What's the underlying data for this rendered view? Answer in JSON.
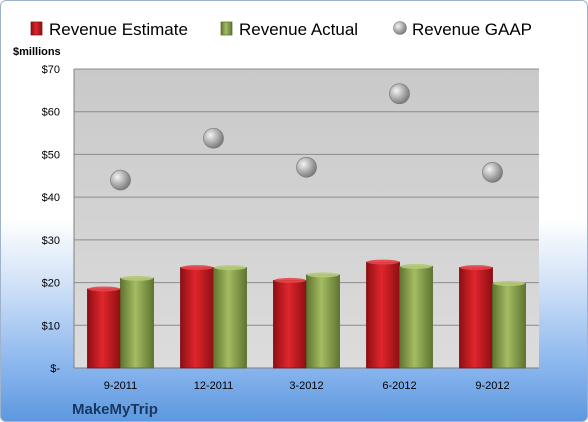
{
  "chart_data": {
    "type": "bar",
    "categories": [
      "9-2011",
      "12-2011",
      "3-2012",
      "6-2012",
      "9-2012"
    ],
    "series": [
      {
        "name": "Revenue Estimate",
        "mark": "bar",
        "color": "#c0151b",
        "values": [
          18.5,
          23.5,
          20.5,
          24.8,
          23.5
        ]
      },
      {
        "name": "Revenue Actual",
        "mark": "bar",
        "color": "#8aa04a",
        "values": [
          21,
          23.5,
          21.8,
          23.8,
          19.8
        ]
      },
      {
        "name": "Revenue GAAP",
        "mark": "scatter",
        "color": "#a6a6a6",
        "values": [
          44,
          53.8,
          47,
          64.2,
          45.8
        ]
      }
    ],
    "ylabel": "$millions",
    "ylim": [
      0,
      70
    ],
    "yticks": [
      0,
      10,
      20,
      30,
      40,
      50,
      60,
      70
    ],
    "ytick_labels": [
      "$-",
      "$10",
      "$20",
      "$30",
      "$40",
      "$50",
      "$60",
      "$70"
    ],
    "grid": true,
    "legend_position": "top",
    "company": "MakeMyTrip"
  }
}
